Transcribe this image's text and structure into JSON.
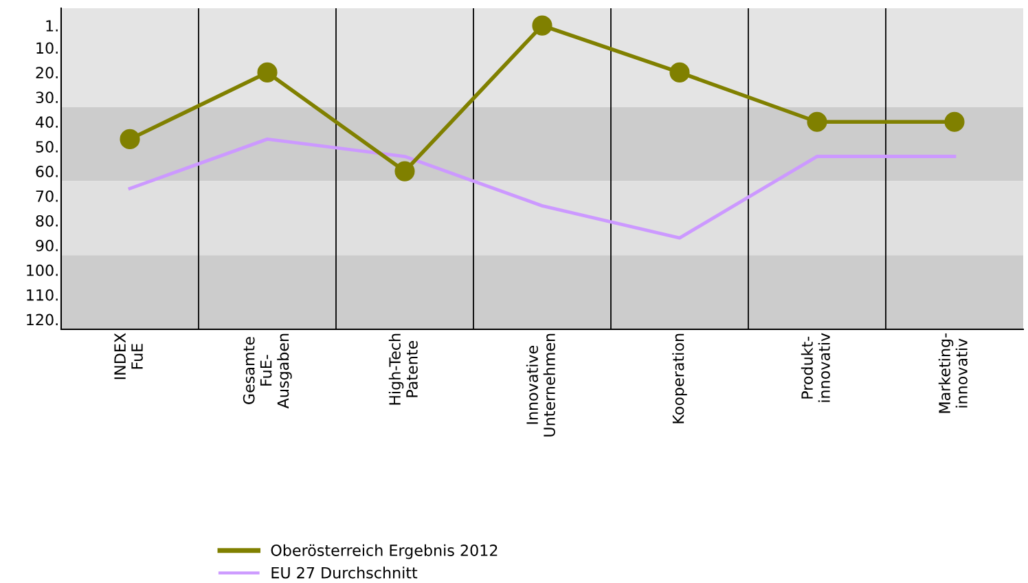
{
  "chart_data": {
    "type": "line",
    "categories": [
      "INDEX\nFuE",
      "Gesamte\nFuE-\nAusgaben",
      "High-Tech\nPatente",
      "Innovative\nUnternehmen",
      "Kooperation",
      "Produkt-\ninnovativ",
      "Marketing-\ninnovativ"
    ],
    "series": [
      {
        "name": "Oberösterreich Ergebnis 2012",
        "color": "#808000",
        "marker": "circle",
        "values": [
          47,
          20,
          60,
          1,
          20,
          40,
          40
        ]
      },
      {
        "name": "EU 27 Durchschnitt",
        "color": "#cc99ff",
        "marker": "none",
        "values": [
          67,
          47,
          54,
          74,
          87,
          54,
          54
        ]
      }
    ],
    "ylim": [
      124,
      -6
    ],
    "yticks": [
      {
        "value": 1,
        "label": "1."
      },
      {
        "value": 10,
        "label": "10."
      },
      {
        "value": 20,
        "label": "20."
      },
      {
        "value": 30,
        "label": "30."
      },
      {
        "value": 40,
        "label": "40."
      },
      {
        "value": 50,
        "label": "50."
      },
      {
        "value": 60,
        "label": "60."
      },
      {
        "value": 70,
        "label": "70."
      },
      {
        "value": 80,
        "label": "80."
      },
      {
        "value": 90,
        "label": "90."
      },
      {
        "value": 100,
        "label": "100."
      },
      {
        "value": 110,
        "label": "110."
      },
      {
        "value": 120,
        "label": "120."
      }
    ],
    "bands": [
      {
        "axis": "y",
        "from": -6,
        "to": 34,
        "color": "#e4e4e4"
      },
      {
        "axis": "y",
        "from": 34,
        "to": 64,
        "color": "#cccccc"
      },
      {
        "axis": "y",
        "from": 64,
        "to": 94,
        "color": "#e0e0e0"
      },
      {
        "axis": "y",
        "from": 94,
        "to": 124,
        "color": "#cccccc"
      }
    ],
    "grid": false,
    "legend": "bottom"
  }
}
